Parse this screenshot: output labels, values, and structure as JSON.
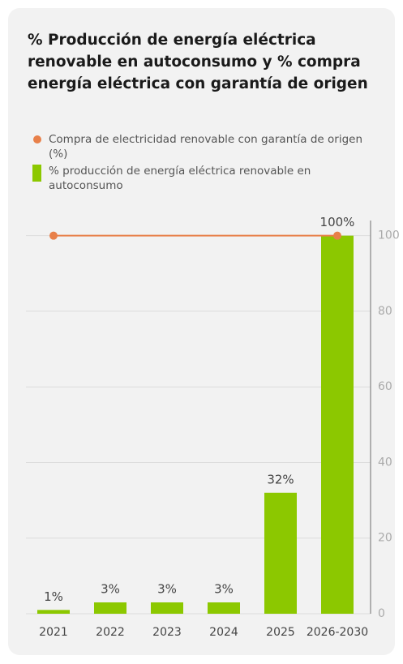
{
  "chart_data": {
    "type": "bar",
    "title": "% Producción de energía eléctrica renovable en autoconsumo y % compra energía eléctrica con garantía de origen",
    "categories": [
      "2021",
      "2022",
      "2023",
      "2024",
      "2025",
      "2026-2030"
    ],
    "series": [
      {
        "name": "Compra de electricidad renovable con garantía de origen (%)",
        "type": "line",
        "color": "#e8804a",
        "values": [
          100,
          100,
          100,
          100,
          100,
          100
        ]
      },
      {
        "name": "% producción de energía eléctrica renovable en autoconsumo",
        "type": "bar",
        "color": "#8cc800",
        "values": [
          1,
          3,
          3,
          3,
          32,
          100
        ],
        "value_labels": [
          "1%",
          "3%",
          "3%",
          "3%",
          "32%",
          "100%"
        ]
      }
    ],
    "ylim": [
      0,
      104
    ],
    "yticks": [
      0,
      20,
      40,
      60,
      80,
      100
    ],
    "grid": true
  }
}
